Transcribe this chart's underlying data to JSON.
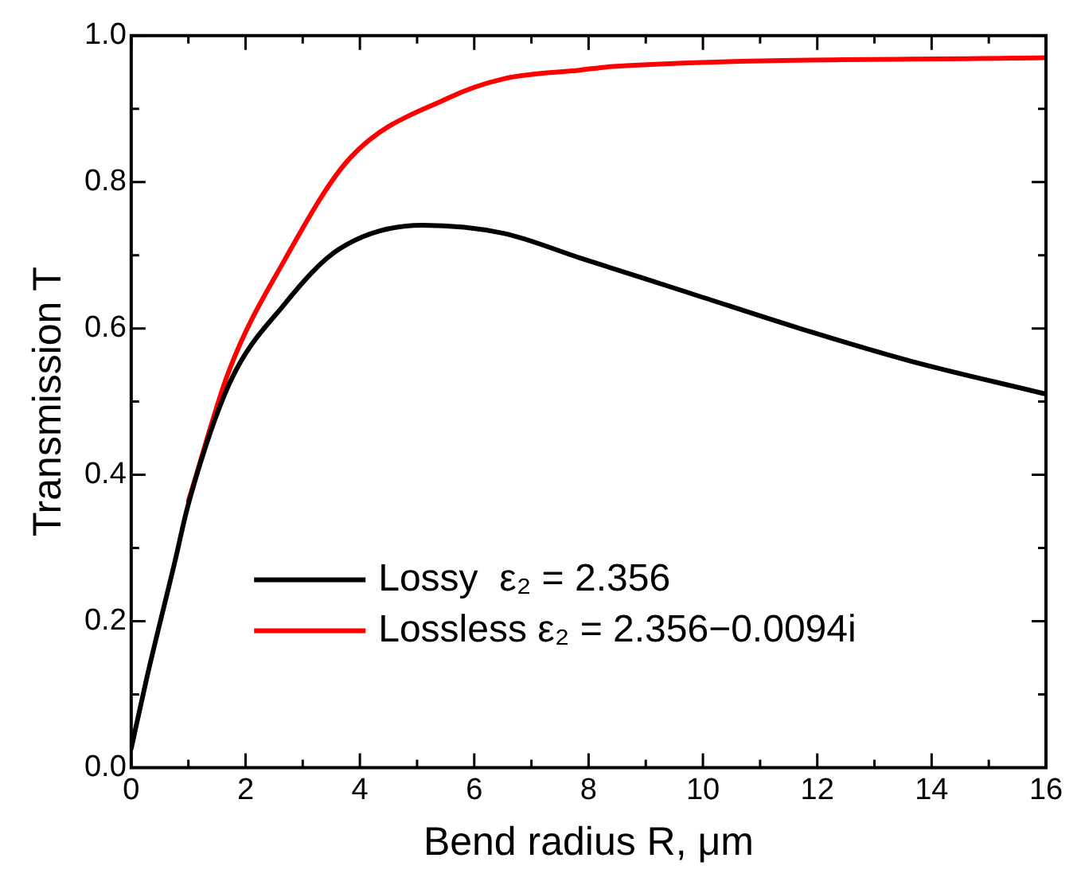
{
  "chart_data": {
    "type": "line",
    "xlabel": "Bend radius R, μm",
    "ylabel": "Transmission T",
    "xlim": [
      0,
      16
    ],
    "ylim": [
      0,
      1
    ],
    "xticks": [
      0,
      {
        "value": 1,
        "label": null
      },
      2,
      {
        "value": 3,
        "label": null
      },
      4,
      {
        "value": 5,
        "label": null
      },
      6,
      {
        "value": 7,
        "label": null
      },
      8,
      {
        "value": 9,
        "label": null
      },
      10,
      {
        "value": 11,
        "label": null
      },
      12,
      {
        "value": 13,
        "label": null
      },
      14,
      {
        "value": 15,
        "label": null
      },
      16
    ],
    "yticks": [
      {
        "value": 0,
        "label": "0.0"
      },
      {
        "value": 0.1,
        "label": null
      },
      {
        "value": 0.2,
        "label": "0.2"
      },
      {
        "value": 0.3,
        "label": null
      },
      {
        "value": 0.4,
        "label": "0.4"
      },
      {
        "value": 0.5,
        "label": null
      },
      {
        "value": 0.6,
        "label": "0.6"
      },
      {
        "value": 0.7,
        "label": null
      },
      {
        "value": 0.8,
        "label": "0.8"
      },
      {
        "value": 0.9,
        "label": null
      },
      {
        "value": 1,
        "label": "1.0"
      }
    ],
    "grid": false,
    "legend": "bottom",
    "marker": "none",
    "line_style": "solid",
    "series": [
      {
        "name": "Lossy  ε₂ = 2.356",
        "color": "#000000",
        "x": [
          0,
          0.28,
          0.76,
          1.0,
          1.72,
          2.68,
          3.63,
          5.1,
          6.51,
          7.86,
          9.78,
          11.69,
          13.6,
          15.96
        ],
        "values": [
          0.026,
          0.125,
          0.28,
          0.36,
          0.525,
          0.633,
          0.708,
          0.741,
          0.73,
          0.696,
          0.648,
          0.6,
          0.556,
          0.511
        ]
      },
      {
        "name": "Lossless ε₂ = 2.356−0.0094i",
        "color": "#ff0000",
        "x": [
          1.0,
          1.72,
          2.68,
          3.83,
          5.55,
          6.51,
          7.86,
          8.43,
          15.96
        ],
        "values": [
          0.364,
          0.544,
          0.693,
          0.833,
          0.915,
          0.941,
          0.953,
          0.958,
          0.97
        ]
      }
    ]
  }
}
